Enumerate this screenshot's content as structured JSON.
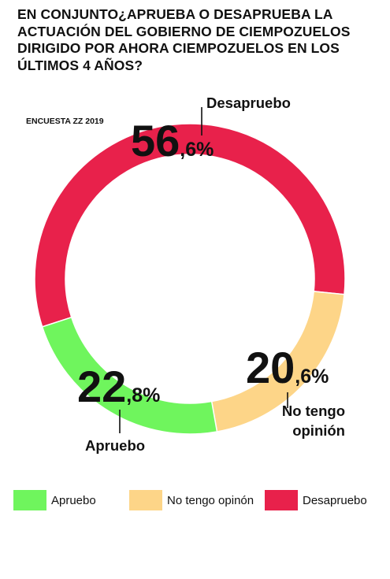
{
  "chart_data": {
    "type": "pie",
    "style": "donut",
    "title": "EN CONJUNTO¿APRUEBA O DESAPRUEBA LA ACTUACIÓN DEL GOBIERNO DE CIEMPOZUELOS DIRIGIDO POR AHORA CIEMPOZUELOS EN LOS ÚLTIMOS 4 AÑOS?",
    "subtitle": "ENCUESTA ZZ 2019",
    "slices": [
      {
        "label": "Desapruebo",
        "value": 56.6,
        "int": "56",
        "dec": ",6%",
        "color": "#e8214b"
      },
      {
        "label": "No tengo opinión",
        "value": 20.6,
        "int": "20",
        "dec": ",6%",
        "color": "#fdd588"
      },
      {
        "label": "Apruebo",
        "value": 22.8,
        "int": "22",
        "dec": ",8%",
        "color": "#6ff55d"
      }
    ],
    "legend": {
      "placement": "bottom",
      "items": [
        {
          "label": "Apruebo",
          "color": "#6ff55d"
        },
        {
          "label": "No tengo opinón",
          "color": "#fdd588"
        },
        {
          "label": "Desapruebo",
          "color": "#e8214b"
        }
      ]
    }
  }
}
